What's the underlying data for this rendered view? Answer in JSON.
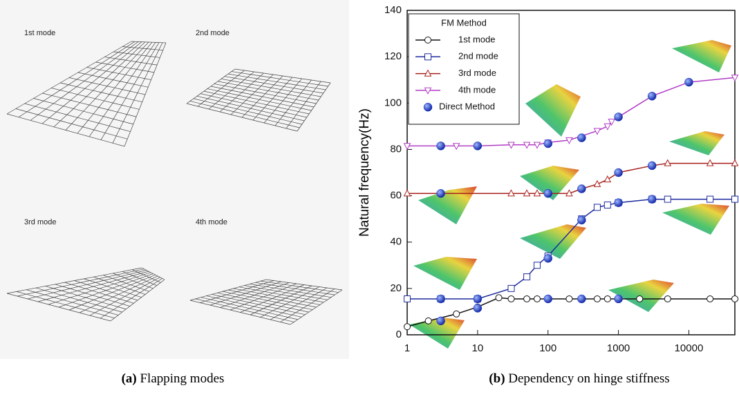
{
  "panel_a": {
    "mode_labels": [
      "1st mode",
      "2nd mode",
      "3rd mode",
      "4th mode"
    ],
    "caption_label": "(a)",
    "caption_text": "Flapping modes"
  },
  "panel_b": {
    "caption_label": "(b)",
    "caption_text": "Dependency on hinge stiffness"
  },
  "chart_data": {
    "type": "line",
    "y_label": "Natural frequency(Hz)",
    "legend_title": "FM Method",
    "legend_position": "upper left",
    "x_scale": "log",
    "xlim": [
      1,
      45000
    ],
    "xticks": [
      1,
      10,
      100,
      1000,
      10000
    ],
    "ylim": [
      0,
      140
    ],
    "yticks": [
      0,
      20,
      40,
      60,
      80,
      100,
      120,
      140
    ],
    "series": [
      {
        "name": "1st mode",
        "color": "#111111",
        "marker": "circle-open",
        "connect": true,
        "x": [
          1,
          2,
          5,
          10,
          20,
          30,
          50,
          70,
          100,
          200,
          300,
          500,
          700,
          1000,
          2000,
          5000,
          20000,
          45000
        ],
        "values": [
          3.5,
          6,
          9,
          12,
          16,
          15.5,
          15.5,
          15.5,
          15.5,
          15.5,
          15.5,
          15.5,
          15.5,
          15.5,
          15.5,
          15.5,
          15.5,
          15.5
        ]
      },
      {
        "name": "2nd mode",
        "color": "#1c2a9c",
        "marker": "square-open",
        "connect": true,
        "x": [
          1,
          3,
          10,
          30,
          50,
          70,
          100,
          300,
          500,
          700,
          1000,
          3000,
          5000,
          20000,
          45000
        ],
        "values": [
          15.5,
          15.5,
          15.5,
          20,
          25,
          30,
          34,
          50,
          55,
          56,
          57,
          58.5,
          58.5,
          58.5,
          58.5
        ]
      },
      {
        "name": "3rd mode",
        "color": "#a8201c",
        "marker": "triangle-up",
        "connect": true,
        "x": [
          1,
          30,
          50,
          70,
          200,
          300,
          500,
          700,
          1000,
          3000,
          5000,
          20000,
          45000
        ],
        "values": [
          61,
          61,
          61,
          61,
          61,
          63,
          65,
          67,
          70,
          73,
          74,
          74,
          74
        ]
      },
      {
        "name": "4th mode",
        "color": "#b03cc4",
        "marker": "triangle-down",
        "connect": true,
        "x": [
          1,
          3,
          5,
          10,
          30,
          50,
          70,
          100,
          200,
          500,
          700,
          800,
          1000,
          3000,
          10000,
          45000
        ],
        "values": [
          81.5,
          81.5,
          81.5,
          81.5,
          82,
          82,
          82,
          83,
          84,
          88,
          90,
          92,
          94,
          103,
          109,
          111
        ]
      },
      {
        "name": "Direct Method",
        "color": "#1030c0",
        "marker": "circle-filled",
        "connect": false,
        "x": [
          3,
          10,
          100,
          300,
          1000,
          3,
          10,
          100,
          300,
          1000,
          3000,
          3,
          100,
          300,
          1000,
          3000,
          3,
          10,
          100,
          300,
          1000,
          3000,
          10000
        ],
        "values": [
          6,
          11.5,
          15.5,
          15.5,
          15.5,
          15.5,
          15.5,
          33,
          49.5,
          57,
          58.5,
          61,
          61,
          63,
          70,
          73,
          81.5,
          81.5,
          82.5,
          85,
          94,
          103,
          109
        ]
      }
    ]
  }
}
